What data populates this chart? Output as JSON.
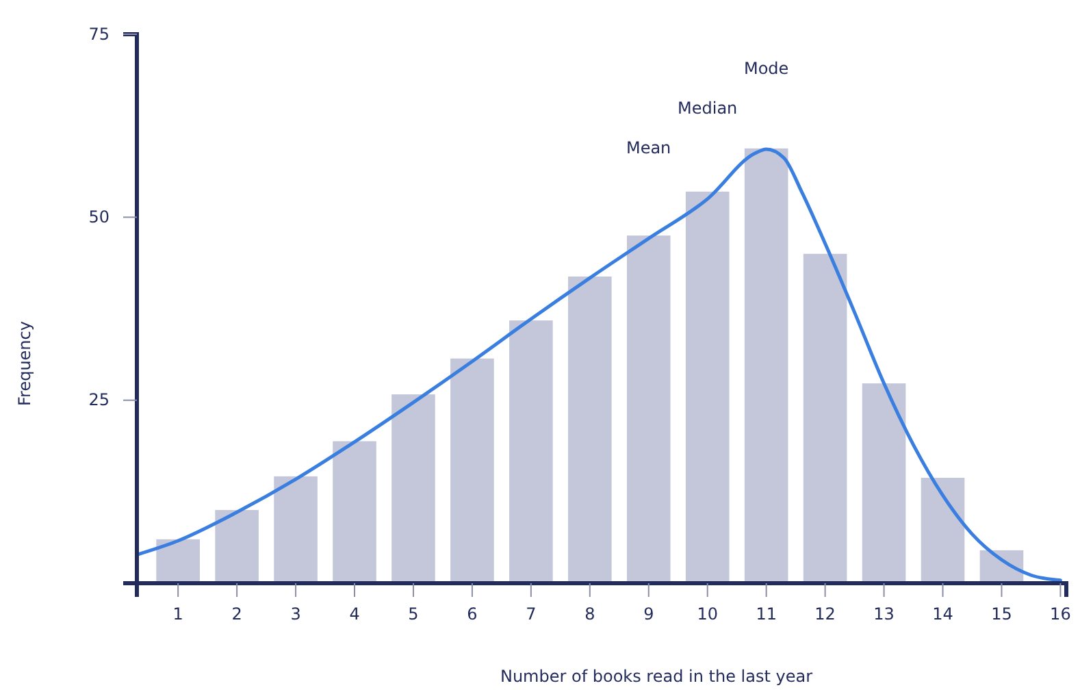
{
  "chart_data": {
    "type": "bar",
    "xlabel": "Number of books read in the last year",
    "ylabel": "Frequency",
    "xlim": [
      0.3,
      16.1
    ],
    "xticks": [
      1,
      2,
      3,
      4,
      5,
      6,
      7,
      8,
      9,
      10,
      11,
      12,
      13,
      14,
      15,
      16
    ],
    "ylim": [
      0,
      75
    ],
    "yticks": [
      25,
      50,
      75
    ],
    "grid": false,
    "series": [
      {
        "color": "#c3c7d9",
        "x": [
          1,
          2,
          3,
          4,
          5,
          6,
          7,
          8,
          9,
          10,
          11,
          12,
          13,
          14,
          15
        ],
        "values": [
          6,
          10,
          14.6,
          19.4,
          25.8,
          30.7,
          35.9,
          41.9,
          47.5,
          53.5,
          59.4,
          45,
          27.3,
          14.4,
          4.5
        ]
      },
      {
        "type": "line",
        "color": "#3a7fe0",
        "x": [
          0.3,
          1,
          2,
          3,
          4,
          5,
          6,
          7,
          8,
          9,
          10,
          10.8,
          11,
          11.3,
          11.6,
          12,
          12.5,
          13,
          13.5,
          14,
          14.5,
          15,
          15.5,
          16
        ],
        "values": [
          3.9,
          5.8,
          9.7,
          14.2,
          19.3,
          24.7,
          30.3,
          36.1,
          41.7,
          47.1,
          52.5,
          58.7,
          59.3,
          58.1,
          53.5,
          46.4,
          37,
          27.3,
          18.9,
          12,
          6.7,
          3.2,
          1.1,
          0.4
        ]
      }
    ],
    "annotations": [
      "Mean",
      "Median",
      "Mode"
    ]
  }
}
